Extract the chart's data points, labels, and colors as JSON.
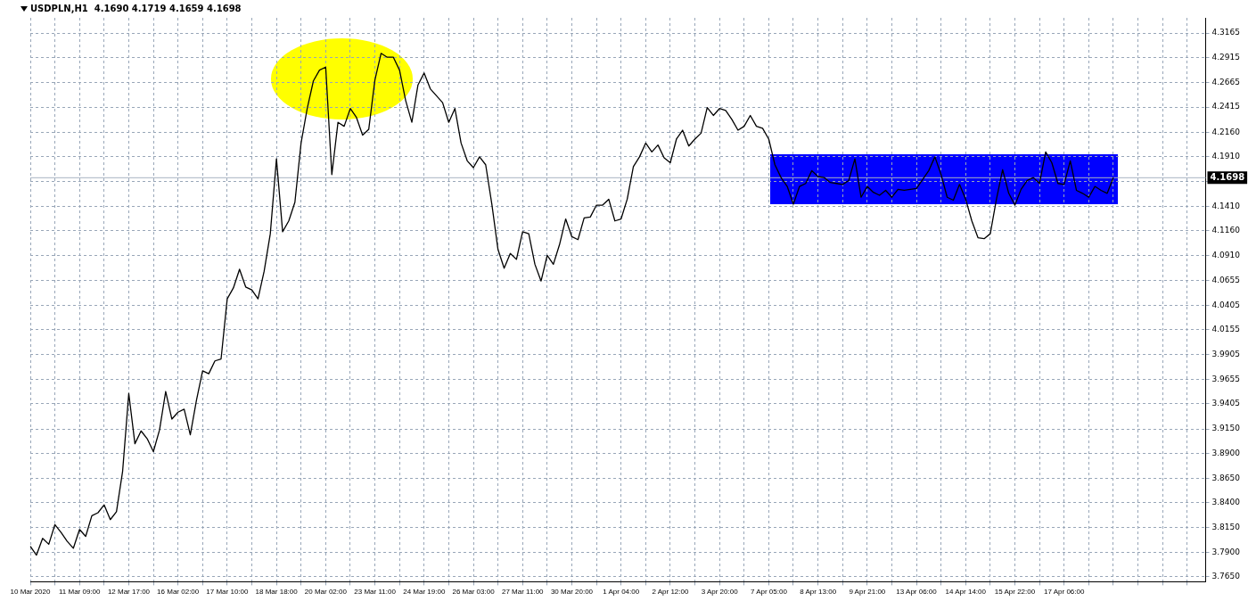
{
  "chart_data": {
    "type": "line",
    "title": "USDPLN,H1  4.1690 4.1719 4.1659 4.1698",
    "categories": [
      "10 Mar 2020",
      null,
      null,
      null,
      null,
      null,
      null,
      null,
      "11 Mar 09:00",
      null,
      null,
      null,
      null,
      null,
      null,
      null,
      "12 Mar 17:00",
      null,
      null,
      null,
      null,
      null,
      null,
      null,
      "16 Mar 02:00",
      null,
      null,
      null,
      null,
      null,
      null,
      null,
      "17 Mar 10:00",
      null,
      null,
      null,
      null,
      null,
      null,
      null,
      "18 Mar 18:00",
      null,
      null,
      null,
      null,
      null,
      null,
      null,
      "20 Mar 02:00",
      null,
      null,
      null,
      null,
      null,
      null,
      null,
      "23 Mar 11:00",
      null,
      null,
      null,
      null,
      null,
      null,
      null,
      "24 Mar 19:00",
      null,
      null,
      null,
      null,
      null,
      null,
      null,
      "26 Mar 03:00",
      null,
      null,
      null,
      null,
      null,
      null,
      null,
      "27 Mar 11:00",
      null,
      null,
      null,
      null,
      null,
      null,
      null,
      "30 Mar 20:00",
      null,
      null,
      null,
      null,
      null,
      null,
      null,
      "1 Apr 04:00",
      null,
      null,
      null,
      null,
      null,
      null,
      null,
      "2 Apr 12:00",
      null,
      null,
      null,
      null,
      null,
      null,
      null,
      "3 Apr 20:00",
      null,
      null,
      null,
      null,
      null,
      null,
      null,
      "7 Apr 05:00",
      null,
      null,
      null,
      null,
      null,
      null,
      null,
      "8 Apr 13:00",
      null,
      null,
      null,
      null,
      null,
      null,
      null,
      "9 Apr 21:00",
      null,
      null,
      null,
      null,
      null,
      null,
      null,
      "13 Apr 06:00",
      null,
      null,
      null,
      null,
      null,
      null,
      null,
      "14 Apr 14:00",
      null,
      null,
      null,
      null,
      null,
      null,
      null,
      "15 Apr 22:00",
      null,
      null,
      null,
      null,
      null,
      null,
      null,
      "17 Apr 06:00",
      null,
      null,
      null,
      null,
      null,
      null,
      null,
      null,
      null,
      null,
      null,
      null,
      null,
      null,
      null,
      null,
      null,
      null,
      null,
      null,
      null,
      null,
      null
    ],
    "series": [
      {
        "color": "#000000",
        "values": [
          3.796,
          3.787,
          3.804,
          3.798,
          3.818,
          3.81,
          3.801,
          3.794,
          3.813,
          3.806,
          3.827,
          3.83,
          3.838,
          3.823,
          3.831,
          3.872,
          3.951,
          3.9,
          3.913,
          3.905,
          3.892,
          3.914,
          3.953,
          3.925,
          3.932,
          3.935,
          3.909,
          3.944,
          3.974,
          3.971,
          3.984,
          3.986,
          4.047,
          4.058,
          4.077,
          4.059,
          4.056,
          4.047,
          4.075,
          4.113,
          4.189,
          4.115,
          4.126,
          4.145,
          4.205,
          4.24,
          4.268,
          4.279,
          4.282,
          4.173,
          4.226,
          4.222,
          4.24,
          4.231,
          4.213,
          4.219,
          4.269,
          4.296,
          4.292,
          4.292,
          4.279,
          4.248,
          4.226,
          4.264,
          4.276,
          4.26,
          4.253,
          4.246,
          4.226,
          4.24,
          4.205,
          4.187,
          4.18,
          4.191,
          4.183,
          4.143,
          4.097,
          4.078,
          4.093,
          4.087,
          4.115,
          4.113,
          4.082,
          4.065,
          4.091,
          4.082,
          4.102,
          4.128,
          4.11,
          4.107,
          4.129,
          4.13,
          4.142,
          4.142,
          4.148,
          4.126,
          4.128,
          4.148,
          4.181,
          4.191,
          4.205,
          4.196,
          4.203,
          4.19,
          4.185,
          4.209,
          4.218,
          4.202,
          4.209,
          4.215,
          4.241,
          4.233,
          4.24,
          4.238,
          4.229,
          4.218,
          4.222,
          4.233,
          4.222,
          4.22,
          4.209,
          4.183,
          4.17,
          4.161,
          4.143,
          4.161,
          4.164,
          4.177,
          4.171,
          4.17,
          4.165,
          4.164,
          4.163,
          4.167,
          4.189,
          4.15,
          4.161,
          4.155,
          4.152,
          4.157,
          4.15,
          4.158,
          4.157,
          4.158,
          4.159,
          4.168,
          4.177,
          4.191,
          4.173,
          4.15,
          4.147,
          4.163,
          4.148,
          4.126,
          4.109,
          4.108,
          4.113,
          4.148,
          4.178,
          4.154,
          4.142,
          4.158,
          4.167,
          4.17,
          4.164,
          4.196,
          4.185,
          4.164,
          4.163,
          4.187,
          4.157,
          4.154,
          4.15,
          4.161,
          4.157,
          4.154,
          4.17,
          null,
          null,
          null,
          null,
          null,
          null,
          null,
          null,
          null,
          null,
          null,
          null,
          null,
          null,
          null
        ]
      }
    ],
    "ylim": [
      3.76,
      4.332
    ],
    "yticks": [
      4.3165,
      4.2915,
      4.2665,
      4.2415,
      {
        "value": 4.216,
        "label": "4.2160"
      },
      {
        "value": 4.191,
        "label": "4.1910"
      },
      {
        "value": 4.166,
        "label": null
      },
      {
        "value": 4.141,
        "label": "4.1410"
      },
      {
        "value": 4.116,
        "label": "4.1160"
      },
      {
        "value": 4.091,
        "label": "4.0910"
      },
      4.0655,
      4.0405,
      4.0155,
      3.9905,
      3.9655,
      3.9405,
      {
        "value": 3.915,
        "label": "3.9150"
      },
      {
        "value": 3.89,
        "label": "3.8900"
      },
      {
        "value": 3.865,
        "label": "3.8650"
      },
      {
        "value": 3.84,
        "label": "3.8400"
      },
      {
        "value": 3.815,
        "label": "3.8150"
      },
      {
        "value": 3.79,
        "label": "3.7900"
      },
      {
        "value": 3.765,
        "label": "3.7650"
      }
    ],
    "grid": true,
    "ref_lines": [
      {
        "axis": "y",
        "value": 4.1698,
        "label": "4.1698",
        "color": "#a8b4c2"
      }
    ]
  }
}
